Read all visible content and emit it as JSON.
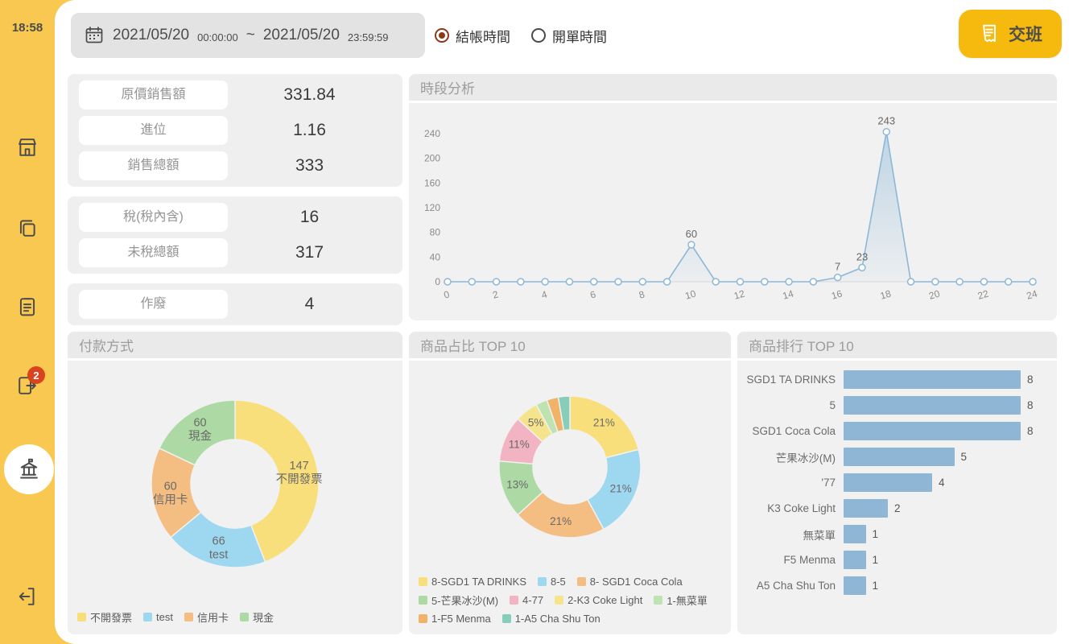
{
  "sidebar": {
    "time": "18:58",
    "badge_count": "2"
  },
  "topbar": {
    "date_range": {
      "start_date": "2021/05/20",
      "start_time": "00:00:00",
      "separator": "~",
      "end_date": "2021/05/20",
      "end_time": "23:59:59"
    },
    "radio_checkout": "結帳時間",
    "radio_open": "開單時間",
    "shift_button": "交班"
  },
  "stats": {
    "groups": [
      {
        "rows": [
          {
            "label": "原價銷售額",
            "value": "331.84"
          },
          {
            "label": "進位",
            "value": "1.16"
          },
          {
            "label": "銷售總額",
            "value": "333"
          }
        ]
      },
      {
        "rows": [
          {
            "label": "稅(稅內含)",
            "value": "16"
          },
          {
            "label": "未稅總額",
            "value": "317"
          }
        ]
      },
      {
        "rows": [
          {
            "label": "作廢",
            "value": "4"
          }
        ]
      }
    ]
  },
  "chart_data": [
    {
      "type": "line",
      "title": "時段分析",
      "x": [
        0,
        1,
        2,
        3,
        4,
        5,
        6,
        7,
        8,
        9,
        10,
        11,
        12,
        13,
        14,
        15,
        16,
        17,
        18,
        19,
        20,
        21,
        22,
        23,
        24
      ],
      "values": [
        0,
        0,
        0,
        0,
        0,
        0,
        0,
        0,
        0,
        0,
        60,
        0,
        0,
        0,
        0,
        0,
        7,
        23,
        243,
        0,
        0,
        0,
        0,
        0,
        0
      ],
      "ylim": [
        0,
        240
      ],
      "yticks": [
        0,
        40,
        80,
        120,
        160,
        200,
        240
      ],
      "xticks": [
        0,
        2,
        4,
        6,
        8,
        10,
        12,
        14,
        16,
        18,
        20,
        22,
        24
      ],
      "line_color": "#8CB8D8"
    },
    {
      "type": "pie",
      "title": "付款方式",
      "labels": [
        "不開發票",
        "test",
        "信用卡",
        "現金"
      ],
      "values": [
        147,
        66,
        60,
        60
      ],
      "colors": [
        "#F9DF7B",
        "#9ED8F0",
        "#F4BD82",
        "#ACD9A4"
      ],
      "legend_position": "bottom"
    },
    {
      "type": "pie",
      "title": "商品占比 TOP 10",
      "labels": [
        "8-SGD1 TA DRINKS",
        "8-5",
        "8- SGD1 Coca Cola",
        "5-芒果冰沙(M)",
        "4-77",
        "2-K3 Coke Light",
        "1-無菜單",
        "1-F5 Menma",
        "1-A5 Cha Shu Ton"
      ],
      "values": [
        8,
        8,
        8,
        5,
        4,
        2,
        1,
        1,
        1
      ],
      "percent_labels": [
        "21%",
        "21%",
        "21%",
        "13%",
        "11%",
        "5%",
        "",
        "",
        ""
      ],
      "colors": [
        "#F9DF7B",
        "#9ED8F0",
        "#F4BD82",
        "#ACD9A4",
        "#F2B3C3",
        "#F6E48C",
        "#BEE2B0",
        "#F1B269",
        "#86CDBA"
      ],
      "legend_position": "bottom"
    },
    {
      "type": "bar",
      "title": "商品排行 TOP 10",
      "categories": [
        "SGD1 TA DRINKS",
        "5",
        "SGD1 Coca Cola",
        "芒果冰沙(M)",
        "'77",
        "K3 Coke Light",
        "無菜單",
        "F5 Menma",
        "A5 Cha Shu Ton"
      ],
      "values": [
        8,
        8,
        8,
        5,
        4,
        2,
        1,
        1,
        1
      ],
      "bar_color": "#8FB6D4"
    }
  ]
}
